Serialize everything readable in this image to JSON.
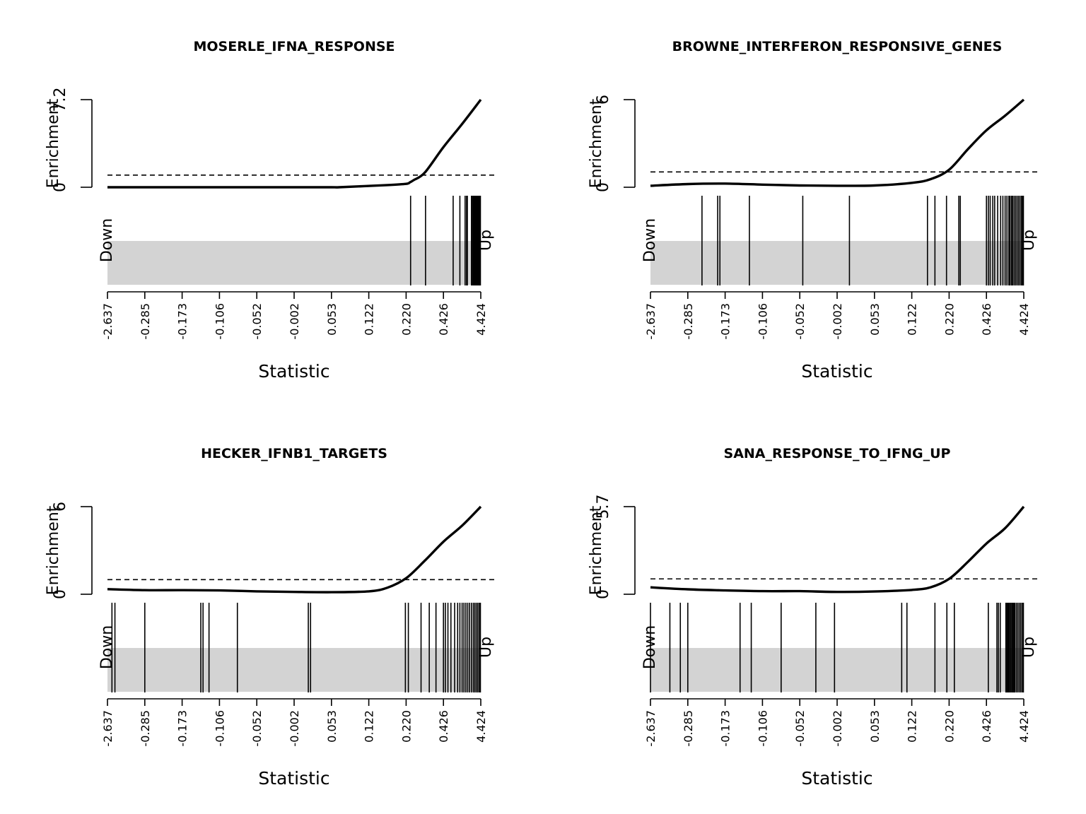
{
  "figure": {
    "xlabel": "Statistic",
    "ylabel": "Enrichment",
    "down_label": "Down",
    "up_label": "Up",
    "x_tick_labels": [
      "-2.637",
      "-0.285",
      "-0.173",
      "-0.106",
      "-0.052",
      "-0.002",
      "0.053",
      "0.122",
      "0.220",
      "0.426",
      "4.424"
    ],
    "colors": {
      "line": "#000000",
      "bar_fill": "#d3d3d3",
      "background": "#ffffff"
    }
  },
  "chart_data": [
    {
      "type": "line",
      "title": "MOSERLE_IFNA_RESPONSE",
      "xlabel": "Statistic",
      "ylabel": "Enrichment",
      "ylim": [
        0,
        7.2
      ],
      "y_ticks": [
        "0",
        "7.2"
      ],
      "reference_line": 1.0,
      "x_ranks": [
        0.0,
        0.2,
        0.4,
        0.6,
        0.62,
        0.75,
        0.8,
        0.81,
        0.82,
        0.85,
        0.9,
        0.95,
        1.0
      ],
      "enrichment": [
        0,
        0,
        0,
        0,
        0,
        0.18,
        0.28,
        0.4,
        0.58,
        1.2,
        3.3,
        5.2,
        7.2
      ],
      "barcode_ranks": [
        0.812,
        0.852,
        0.926,
        0.944,
        0.958,
        0.962,
        0.964,
        0.975,
        0.978,
        0.98,
        0.982,
        0.984,
        0.986,
        0.988,
        0.99,
        0.992,
        0.994,
        0.996,
        0.998,
        0.999
      ]
    },
    {
      "type": "line",
      "title": "BROWNE_INTERFERON_RESPONSIVE_GENES",
      "xlabel": "Statistic",
      "ylabel": "Enrichment",
      "ylim": [
        0,
        6
      ],
      "y_ticks": [
        "0",
        "6"
      ],
      "reference_line": 1.05,
      "x_ranks": [
        0.0,
        0.1,
        0.2,
        0.3,
        0.4,
        0.5,
        0.6,
        0.7,
        0.75,
        0.8,
        0.85,
        0.9,
        0.95,
        1.0
      ],
      "enrichment": [
        0.1,
        0.22,
        0.25,
        0.18,
        0.12,
        0.1,
        0.12,
        0.3,
        0.55,
        1.2,
        2.6,
        3.9,
        4.9,
        6.0
      ],
      "barcode_ranks": [
        0.138,
        0.18,
        0.186,
        0.265,
        0.408,
        0.533,
        0.742,
        0.762,
        0.793,
        0.826,
        0.83,
        0.9,
        0.905,
        0.91,
        0.917,
        0.922,
        0.93,
        0.938,
        0.944,
        0.95,
        0.955,
        0.96,
        0.963,
        0.967,
        0.97,
        0.974,
        0.978,
        0.982,
        0.986,
        0.99,
        0.994,
        0.997,
        0.999
      ]
    },
    {
      "type": "line",
      "title": "HECKER_IFNB1_TARGETS",
      "xlabel": "Statistic",
      "ylabel": "Enrichment",
      "ylim": [
        0,
        6
      ],
      "y_ticks": [
        "0",
        "6"
      ],
      "reference_line": 1.0,
      "x_ranks": [
        0.0,
        0.1,
        0.2,
        0.3,
        0.4,
        0.5,
        0.6,
        0.7,
        0.75,
        0.8,
        0.85,
        0.9,
        0.95,
        1.0
      ],
      "enrichment": [
        0.35,
        0.28,
        0.28,
        0.26,
        0.2,
        0.16,
        0.14,
        0.2,
        0.45,
        1.1,
        2.3,
        3.6,
        4.7,
        6.0
      ],
      "barcode_ranks": [
        0.012,
        0.02,
        0.1,
        0.25,
        0.256,
        0.272,
        0.348,
        0.538,
        0.544,
        0.798,
        0.806,
        0.84,
        0.862,
        0.88,
        0.9,
        0.905,
        0.912,
        0.92,
        0.93,
        0.938,
        0.944,
        0.95,
        0.955,
        0.96,
        0.965,
        0.97,
        0.975,
        0.98,
        0.984,
        0.988,
        0.992,
        0.996,
        0.999
      ]
    },
    {
      "type": "line",
      "title": "SANA_RESPONSE_TO_IFNG_UP",
      "xlabel": "Statistic",
      "ylabel": "Enrichment",
      "ylim": [
        0,
        5.7
      ],
      "y_ticks": [
        "0",
        "5.7"
      ],
      "reference_line": 1.0,
      "x_ranks": [
        0.0,
        0.1,
        0.2,
        0.3,
        0.4,
        0.5,
        0.6,
        0.7,
        0.75,
        0.8,
        0.85,
        0.9,
        0.95,
        1.0
      ],
      "enrichment": [
        0.45,
        0.32,
        0.25,
        0.2,
        0.2,
        0.15,
        0.18,
        0.28,
        0.45,
        1.0,
        2.1,
        3.3,
        4.3,
        5.7
      ],
      "barcode_ranks": [
        0.0,
        0.052,
        0.08,
        0.1,
        0.24,
        0.27,
        0.35,
        0.443,
        0.493,
        0.673,
        0.687,
        0.762,
        0.794,
        0.814,
        0.905,
        0.928,
        0.932,
        0.937,
        0.952,
        0.955,
        0.958,
        0.96,
        0.962,
        0.965,
        0.968,
        0.97,
        0.973,
        0.976,
        0.98,
        0.984,
        0.988,
        0.992,
        0.996,
        0.999
      ]
    }
  ]
}
